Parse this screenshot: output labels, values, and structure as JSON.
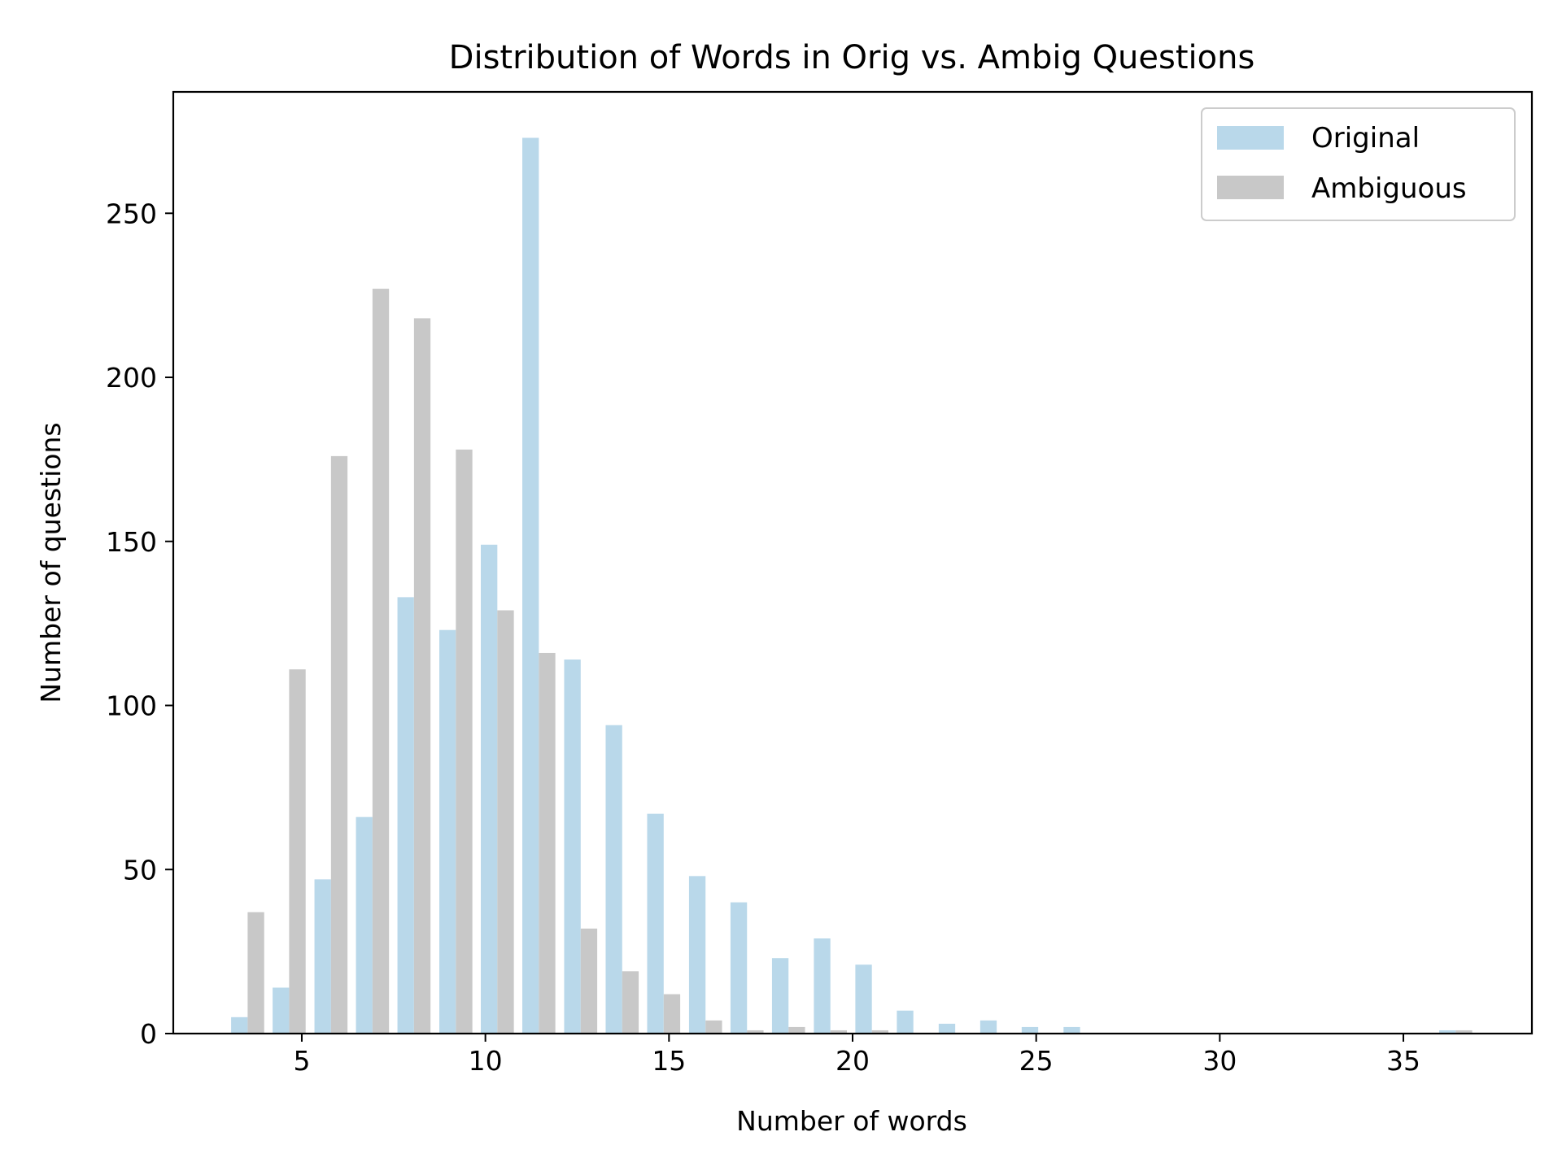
{
  "chart_data": {
    "type": "bar",
    "title": "Distribution of Words in Orig vs. Ambig Questions",
    "xlabel": "Number of words",
    "ylabel": "Number of questions",
    "xlim": [
      1.5,
      38.5
    ],
    "ylim": [
      0,
      287
    ],
    "xticks": [
      5,
      10,
      15,
      20,
      25,
      30,
      35
    ],
    "yticks": [
      0,
      50,
      100,
      150,
      200,
      250
    ],
    "bar_width": 0.45,
    "grid": false,
    "legend_position": "top-right",
    "series": [
      {
        "name": "Original",
        "color": "#b9d8ea",
        "x": [
          3.3,
          4.43,
          5.57,
          6.7,
          7.83,
          8.97,
          10.1,
          11.23,
          12.37,
          13.5,
          14.63,
          15.77,
          16.9,
          18.03,
          19.17,
          20.3,
          21.43,
          22.57,
          23.7,
          24.83,
          25.97,
          36.2
        ],
        "values": [
          5,
          14,
          47,
          66,
          133,
          123,
          149,
          273,
          114,
          94,
          67,
          48,
          40,
          23,
          29,
          21,
          7,
          3,
          4,
          2,
          2,
          1
        ]
      },
      {
        "name": "Ambiguous",
        "color": "#c8c8c8",
        "x": [
          3.75,
          4.88,
          6.02,
          7.15,
          8.28,
          9.42,
          10.55,
          11.68,
          12.82,
          13.95,
          15.08,
          16.22,
          17.35,
          18.48,
          19.62,
          20.75,
          36.65
        ],
        "values": [
          37,
          111,
          176,
          227,
          218,
          178,
          129,
          116,
          32,
          19,
          12,
          4,
          1,
          2,
          1,
          1,
          1
        ]
      }
    ]
  }
}
